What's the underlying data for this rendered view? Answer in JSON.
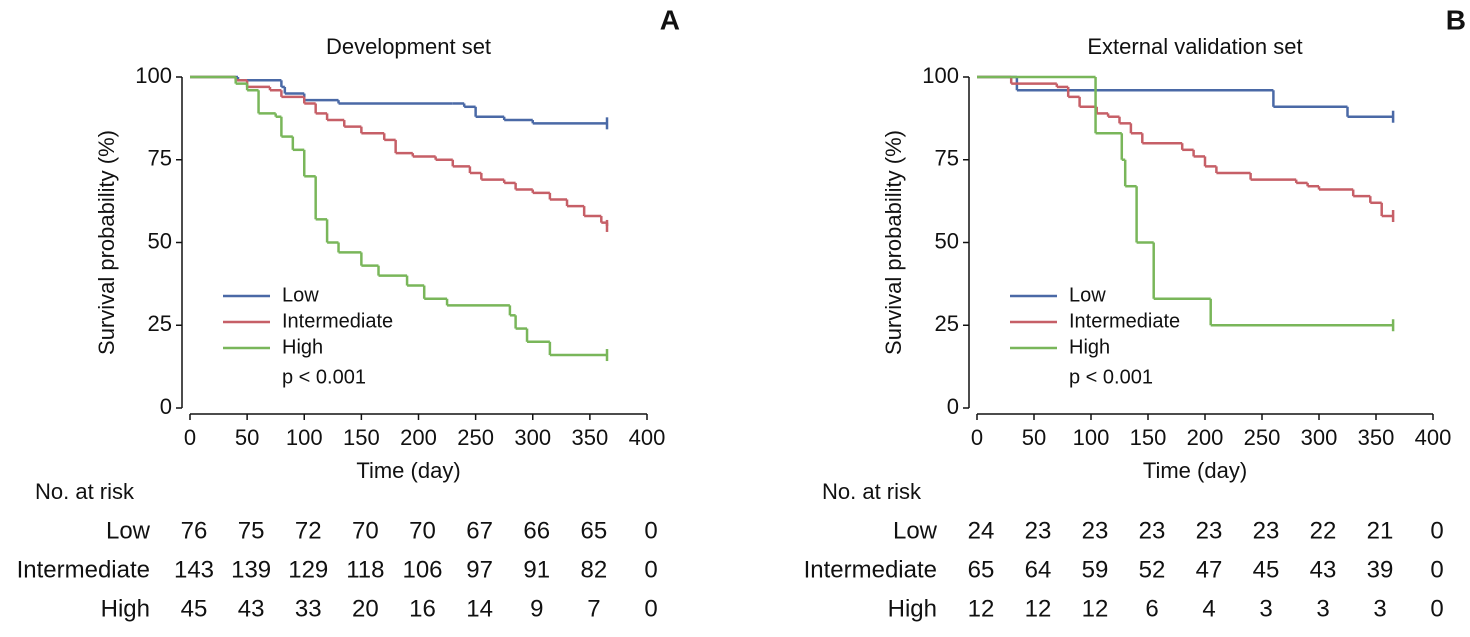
{
  "chart_data": [
    {
      "type": "step",
      "panel_label": "A",
      "title": "Development set",
      "x_label": "Time (day)",
      "y_label": "Survival probability (%)",
      "xlim": [
        0,
        400
      ],
      "xticks": [
        0,
        50,
        100,
        150,
        200,
        250,
        300,
        350,
        400
      ],
      "ylim": [
        0,
        100
      ],
      "yticks": [
        0,
        25,
        50,
        75,
        100
      ],
      "annotation": "p < 0.001",
      "series": [
        {
          "name": "Low",
          "color": "#4a69a6",
          "x": [
            0,
            42,
            80,
            83,
            100,
            130,
            230,
            240,
            250,
            275,
            300,
            365
          ],
          "values": [
            100,
            99,
            97,
            95,
            93,
            92,
            92,
            91,
            88,
            87,
            86,
            86
          ]
        },
        {
          "name": "Intermediate",
          "color": "#c65f67",
          "x": [
            0,
            40,
            50,
            70,
            80,
            100,
            110,
            120,
            135,
            150,
            170,
            180,
            195,
            215,
            230,
            245,
            255,
            275,
            285,
            300,
            315,
            330,
            345,
            360,
            365
          ],
          "values": [
            100,
            99,
            97,
            96,
            94,
            92,
            89,
            87,
            85,
            83,
            81,
            77,
            76,
            75,
            73,
            71,
            69,
            68,
            66,
            65,
            63,
            61,
            58,
            56,
            55
          ]
        },
        {
          "name": "High",
          "color": "#79b65a",
          "x": [
            0,
            40,
            50,
            60,
            75,
            80,
            90,
            100,
            110,
            120,
            130,
            150,
            165,
            190,
            205,
            225,
            280,
            285,
            295,
            315,
            365
          ],
          "values": [
            100,
            98,
            96,
            89,
            88,
            82,
            78,
            70,
            57,
            50,
            47,
            43,
            40,
            37,
            33,
            31,
            28,
            24,
            20,
            16,
            16
          ]
        }
      ],
      "risk_table": {
        "title": "No. at risk",
        "rows": [
          {
            "name": "Low",
            "values": [
              76,
              75,
              72,
              70,
              70,
              67,
              66,
              65,
              0
            ]
          },
          {
            "name": "Intermediate",
            "values": [
              143,
              139,
              129,
              118,
              106,
              97,
              91,
              82,
              0
            ]
          },
          {
            "name": "High",
            "values": [
              45,
              43,
              33,
              20,
              16,
              14,
              9,
              7,
              0
            ]
          }
        ]
      }
    },
    {
      "type": "step",
      "panel_label": "B",
      "title": "External validation set",
      "x_label": "Time (day)",
      "y_label": "Survival probability (%)",
      "xlim": [
        0,
        400
      ],
      "xticks": [
        0,
        50,
        100,
        150,
        200,
        250,
        300,
        350,
        400
      ],
      "ylim": [
        0,
        100
      ],
      "yticks": [
        0,
        25,
        50,
        75,
        100
      ],
      "annotation": "p < 0.001",
      "series": [
        {
          "name": "Low",
          "color": "#4a69a6",
          "x": [
            0,
            35,
            260,
            325,
            365
          ],
          "values": [
            100,
            96,
            91,
            88,
            88
          ]
        },
        {
          "name": "Intermediate",
          "color": "#c65f67",
          "x": [
            0,
            30,
            70,
            80,
            90,
            105,
            115,
            125,
            135,
            145,
            180,
            190,
            200,
            210,
            240,
            280,
            290,
            300,
            330,
            345,
            355,
            365
          ],
          "values": [
            100,
            98,
            97,
            94,
            91,
            89,
            88,
            86,
            83,
            80,
            78,
            76,
            73,
            71,
            69,
            68,
            67,
            66,
            64,
            62,
            58,
            58
          ]
        },
        {
          "name": "High",
          "color": "#79b65a",
          "x": [
            0,
            104,
            127,
            130,
            140,
            155,
            205,
            365
          ],
          "values": [
            100,
            83,
            75,
            67,
            50,
            33,
            25,
            25
          ]
        }
      ],
      "risk_table": {
        "title": "No. at risk",
        "rows": [
          {
            "name": "Low",
            "values": [
              24,
              23,
              23,
              23,
              23,
              23,
              22,
              21,
              0
            ]
          },
          {
            "name": "Intermediate",
            "values": [
              65,
              64,
              59,
              52,
              47,
              45,
              43,
              39,
              0
            ]
          },
          {
            "name": "High",
            "values": [
              12,
              12,
              12,
              6,
              4,
              3,
              3,
              3,
              0
            ]
          }
        ]
      }
    }
  ]
}
